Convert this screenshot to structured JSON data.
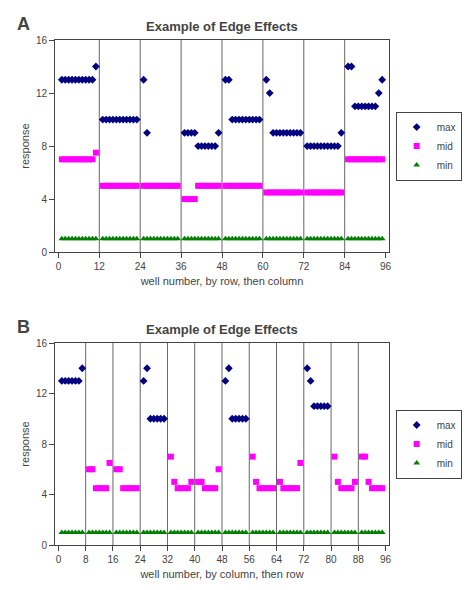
{
  "chart_data": [
    {
      "type": "scatter",
      "title": "Example of Edge Effects",
      "xlabel": "well number, by row, then column",
      "ylabel": "response",
      "annotations": [
        "A"
      ],
      "xlim": [
        -1,
        97
      ],
      "ylim": [
        0,
        16
      ],
      "xticks": [
        0,
        12,
        24,
        36,
        48,
        60,
        72,
        84,
        96
      ],
      "yticks": [
        0,
        4,
        8,
        12,
        16
      ],
      "vlines": [
        12,
        24,
        36,
        48,
        60,
        72,
        84
      ],
      "grid": false,
      "legend": "right",
      "series": [
        {
          "name": "max",
          "color": "#000080",
          "marker": "diamond",
          "x": [
            1,
            2,
            3,
            4,
            5,
            6,
            7,
            8,
            9,
            10,
            11,
            13,
            14,
            15,
            16,
            17,
            18,
            19,
            20,
            21,
            22,
            23,
            25,
            26,
            37,
            38,
            39,
            40,
            41,
            42,
            43,
            44,
            45,
            46,
            47,
            49,
            50,
            51,
            52,
            53,
            54,
            55,
            56,
            57,
            58,
            59,
            61,
            62,
            63,
            64,
            65,
            66,
            67,
            68,
            69,
            70,
            71,
            73,
            74,
            75,
            76,
            77,
            78,
            79,
            80,
            81,
            82,
            83,
            85,
            86,
            87,
            88,
            89,
            90,
            91,
            92,
            93,
            94,
            95
          ],
          "values": [
            13,
            13,
            13,
            13,
            13,
            13,
            13,
            13,
            13,
            13,
            14,
            10,
            10,
            10,
            10,
            10,
            10,
            10,
            10,
            10,
            10,
            10,
            13,
            9,
            9,
            9,
            9,
            9,
            8,
            8,
            8,
            8,
            8,
            8,
            9,
            13,
            13,
            10,
            10,
            10,
            10,
            10,
            10,
            10,
            10,
            10,
            13,
            12,
            9,
            9,
            9,
            9,
            9,
            9,
            9,
            9,
            9,
            8,
            8,
            8,
            8,
            8,
            8,
            8,
            8,
            8,
            8,
            9,
            14,
            14,
            11,
            11,
            11,
            11,
            11,
            11,
            11,
            12,
            13
          ]
        },
        {
          "name": "mid",
          "color": "#FF00FF",
          "marker": "square",
          "x": [
            1,
            2,
            3,
            4,
            5,
            6,
            7,
            8,
            9,
            10,
            11,
            13,
            14,
            15,
            16,
            17,
            18,
            19,
            20,
            21,
            22,
            23,
            25,
            26,
            27,
            28,
            29,
            30,
            31,
            32,
            33,
            34,
            35,
            37,
            38,
            39,
            40,
            41,
            42,
            43,
            44,
            45,
            46,
            47,
            49,
            50,
            51,
            52,
            53,
            54,
            55,
            56,
            57,
            58,
            59,
            61,
            62,
            63,
            64,
            65,
            66,
            67,
            68,
            69,
            70,
            71,
            73,
            74,
            75,
            76,
            77,
            78,
            79,
            80,
            81,
            82,
            83,
            85,
            86,
            87,
            88,
            89,
            90,
            91,
            92,
            93,
            94,
            95
          ],
          "values": [
            7,
            7,
            7,
            7,
            7,
            7,
            7,
            7,
            7,
            7,
            7.5,
            5,
            5,
            5,
            5,
            5,
            5,
            5,
            5,
            5,
            5,
            5,
            5,
            5,
            5,
            5,
            5,
            5,
            5,
            5,
            5,
            5,
            5,
            4,
            4,
            4,
            4,
            5,
            5,
            5,
            5,
            5,
            5,
            5,
            5,
            5,
            5,
            5,
            5,
            5,
            5,
            5,
            5,
            5,
            5,
            4.5,
            4.5,
            4.5,
            4.5,
            4.5,
            4.5,
            4.5,
            4.5,
            4.5,
            4.5,
            4.5,
            4.5,
            4.5,
            4.5,
            4.5,
            4.5,
            4.5,
            4.5,
            4.5,
            4.5,
            4.5,
            4.5,
            7,
            7,
            7,
            7,
            7,
            7,
            7,
            7,
            7,
            7,
            7
          ]
        },
        {
          "name": "min",
          "color": "#008000",
          "marker": "triangle-up",
          "x": [
            1,
            2,
            3,
            4,
            5,
            6,
            7,
            8,
            9,
            10,
            11,
            13,
            14,
            15,
            16,
            17,
            18,
            19,
            20,
            21,
            22,
            23,
            25,
            26,
            27,
            28,
            29,
            30,
            31,
            32,
            33,
            34,
            35,
            37,
            38,
            39,
            40,
            41,
            42,
            43,
            44,
            45,
            46,
            47,
            49,
            50,
            51,
            52,
            53,
            54,
            55,
            56,
            57,
            58,
            59,
            61,
            62,
            63,
            64,
            65,
            66,
            67,
            68,
            69,
            70,
            71,
            73,
            74,
            75,
            76,
            77,
            78,
            79,
            80,
            81,
            82,
            83,
            85,
            86,
            87,
            88,
            89,
            90,
            91,
            92,
            93,
            94,
            95
          ],
          "values": [
            1,
            1,
            1,
            1,
            1,
            1,
            1,
            1,
            1,
            1,
            1,
            1,
            1,
            1,
            1,
            1,
            1,
            1,
            1,
            1,
            1,
            1,
            1,
            1,
            1,
            1,
            1,
            1,
            1,
            1,
            1,
            1,
            1,
            1,
            1,
            1,
            1,
            1,
            1,
            1,
            1,
            1,
            1,
            1,
            1,
            1,
            1,
            1,
            1,
            1,
            1,
            1,
            1,
            1,
            1,
            1,
            1,
            1,
            1,
            1,
            1,
            1,
            1,
            1,
            1,
            1,
            1,
            1,
            1,
            1,
            1,
            1,
            1,
            1,
            1,
            1,
            1,
            1,
            1,
            1,
            1,
            1,
            1,
            1,
            1,
            1,
            1,
            1
          ]
        }
      ]
    },
    {
      "type": "scatter",
      "title": "Example of Edge Effects",
      "xlabel": "well number, by column, then row",
      "ylabel": "response",
      "annotations": [
        "B"
      ],
      "xlim": [
        -1,
        97
      ],
      "ylim": [
        0,
        16
      ],
      "xticks": [
        0,
        8,
        16,
        24,
        32,
        40,
        48,
        56,
        64,
        72,
        80,
        88,
        96
      ],
      "yticks": [
        0,
        4,
        8,
        12,
        16
      ],
      "vlines": [
        8,
        16,
        24,
        32,
        40,
        48,
        56,
        64,
        72,
        80,
        88
      ],
      "grid": false,
      "legend": "right",
      "series": [
        {
          "name": "max",
          "color": "#000080",
          "marker": "diamond",
          "x": [
            1,
            2,
            3,
            4,
            5,
            6,
            7,
            25,
            26,
            27,
            28,
            29,
            30,
            31,
            49,
            50,
            51,
            52,
            53,
            54,
            55,
            73,
            74,
            75,
            76,
            77,
            78,
            79
          ],
          "values": [
            13,
            13,
            13,
            13,
            13,
            13,
            14,
            13,
            14,
            10,
            10,
            10,
            10,
            10,
            13,
            14,
            10,
            10,
            10,
            10,
            10,
            14,
            13,
            11,
            11,
            11,
            11,
            11
          ]
        },
        {
          "name": "mid",
          "color": "#FF00FF",
          "marker": "square",
          "x": [
            9,
            10,
            11,
            12,
            13,
            14,
            15,
            17,
            18,
            19,
            20,
            21,
            22,
            23,
            33,
            34,
            35,
            36,
            37,
            38,
            39,
            41,
            42,
            43,
            44,
            45,
            46,
            47,
            57,
            58,
            59,
            60,
            61,
            62,
            63,
            65,
            66,
            67,
            68,
            69,
            70,
            71,
            81,
            82,
            83,
            84,
            85,
            86,
            87,
            89,
            90,
            91,
            92,
            93,
            94,
            95
          ],
          "values": [
            6,
            6,
            4.5,
            4.5,
            4.5,
            4.5,
            6.5,
            6,
            6,
            4.5,
            4.5,
            4.5,
            4.5,
            4.5,
            7,
            5,
            4.5,
            4.5,
            4.5,
            4.5,
            5,
            5,
            5,
            4.5,
            4.5,
            4.5,
            4.5,
            6,
            7,
            5,
            4.5,
            4.5,
            4.5,
            4.5,
            4.5,
            5,
            4.5,
            4.5,
            4.5,
            4.5,
            4.5,
            6.5,
            7,
            5,
            4.5,
            4.5,
            4.5,
            4.5,
            5,
            7,
            7,
            5,
            4.5,
            4.5,
            4.5,
            4.5
          ]
        },
        {
          "name": "min",
          "color": "#008000",
          "marker": "triangle-up",
          "x": [
            1,
            2,
            3,
            4,
            5,
            6,
            7,
            9,
            10,
            11,
            12,
            13,
            14,
            15,
            17,
            18,
            19,
            20,
            21,
            22,
            23,
            25,
            26,
            27,
            28,
            29,
            30,
            31,
            33,
            34,
            35,
            36,
            37,
            38,
            39,
            41,
            42,
            43,
            44,
            45,
            46,
            47,
            49,
            50,
            51,
            52,
            53,
            54,
            55,
            57,
            58,
            59,
            60,
            61,
            62,
            63,
            65,
            66,
            67,
            68,
            69,
            70,
            71,
            73,
            74,
            75,
            76,
            77,
            78,
            79,
            81,
            82,
            83,
            84,
            85,
            86,
            87,
            89,
            90,
            91,
            92,
            93,
            94,
            95
          ],
          "values": [
            1,
            1,
            1,
            1,
            1,
            1,
            1,
            1,
            1,
            1,
            1,
            1,
            1,
            1,
            1,
            1,
            1,
            1,
            1,
            1,
            1,
            1,
            1,
            1,
            1,
            1,
            1,
            1,
            1,
            1,
            1,
            1,
            1,
            1,
            1,
            1,
            1,
            1,
            1,
            1,
            1,
            1,
            1,
            1,
            1,
            1,
            1,
            1,
            1,
            1,
            1,
            1,
            1,
            1,
            1,
            1,
            1,
            1,
            1,
            1,
            1,
            1,
            1,
            1,
            1,
            1,
            1,
            1,
            1,
            1,
            1,
            1,
            1,
            1,
            1,
            1,
            1,
            1,
            1,
            1,
            1,
            1,
            1,
            1
          ]
        }
      ]
    }
  ]
}
